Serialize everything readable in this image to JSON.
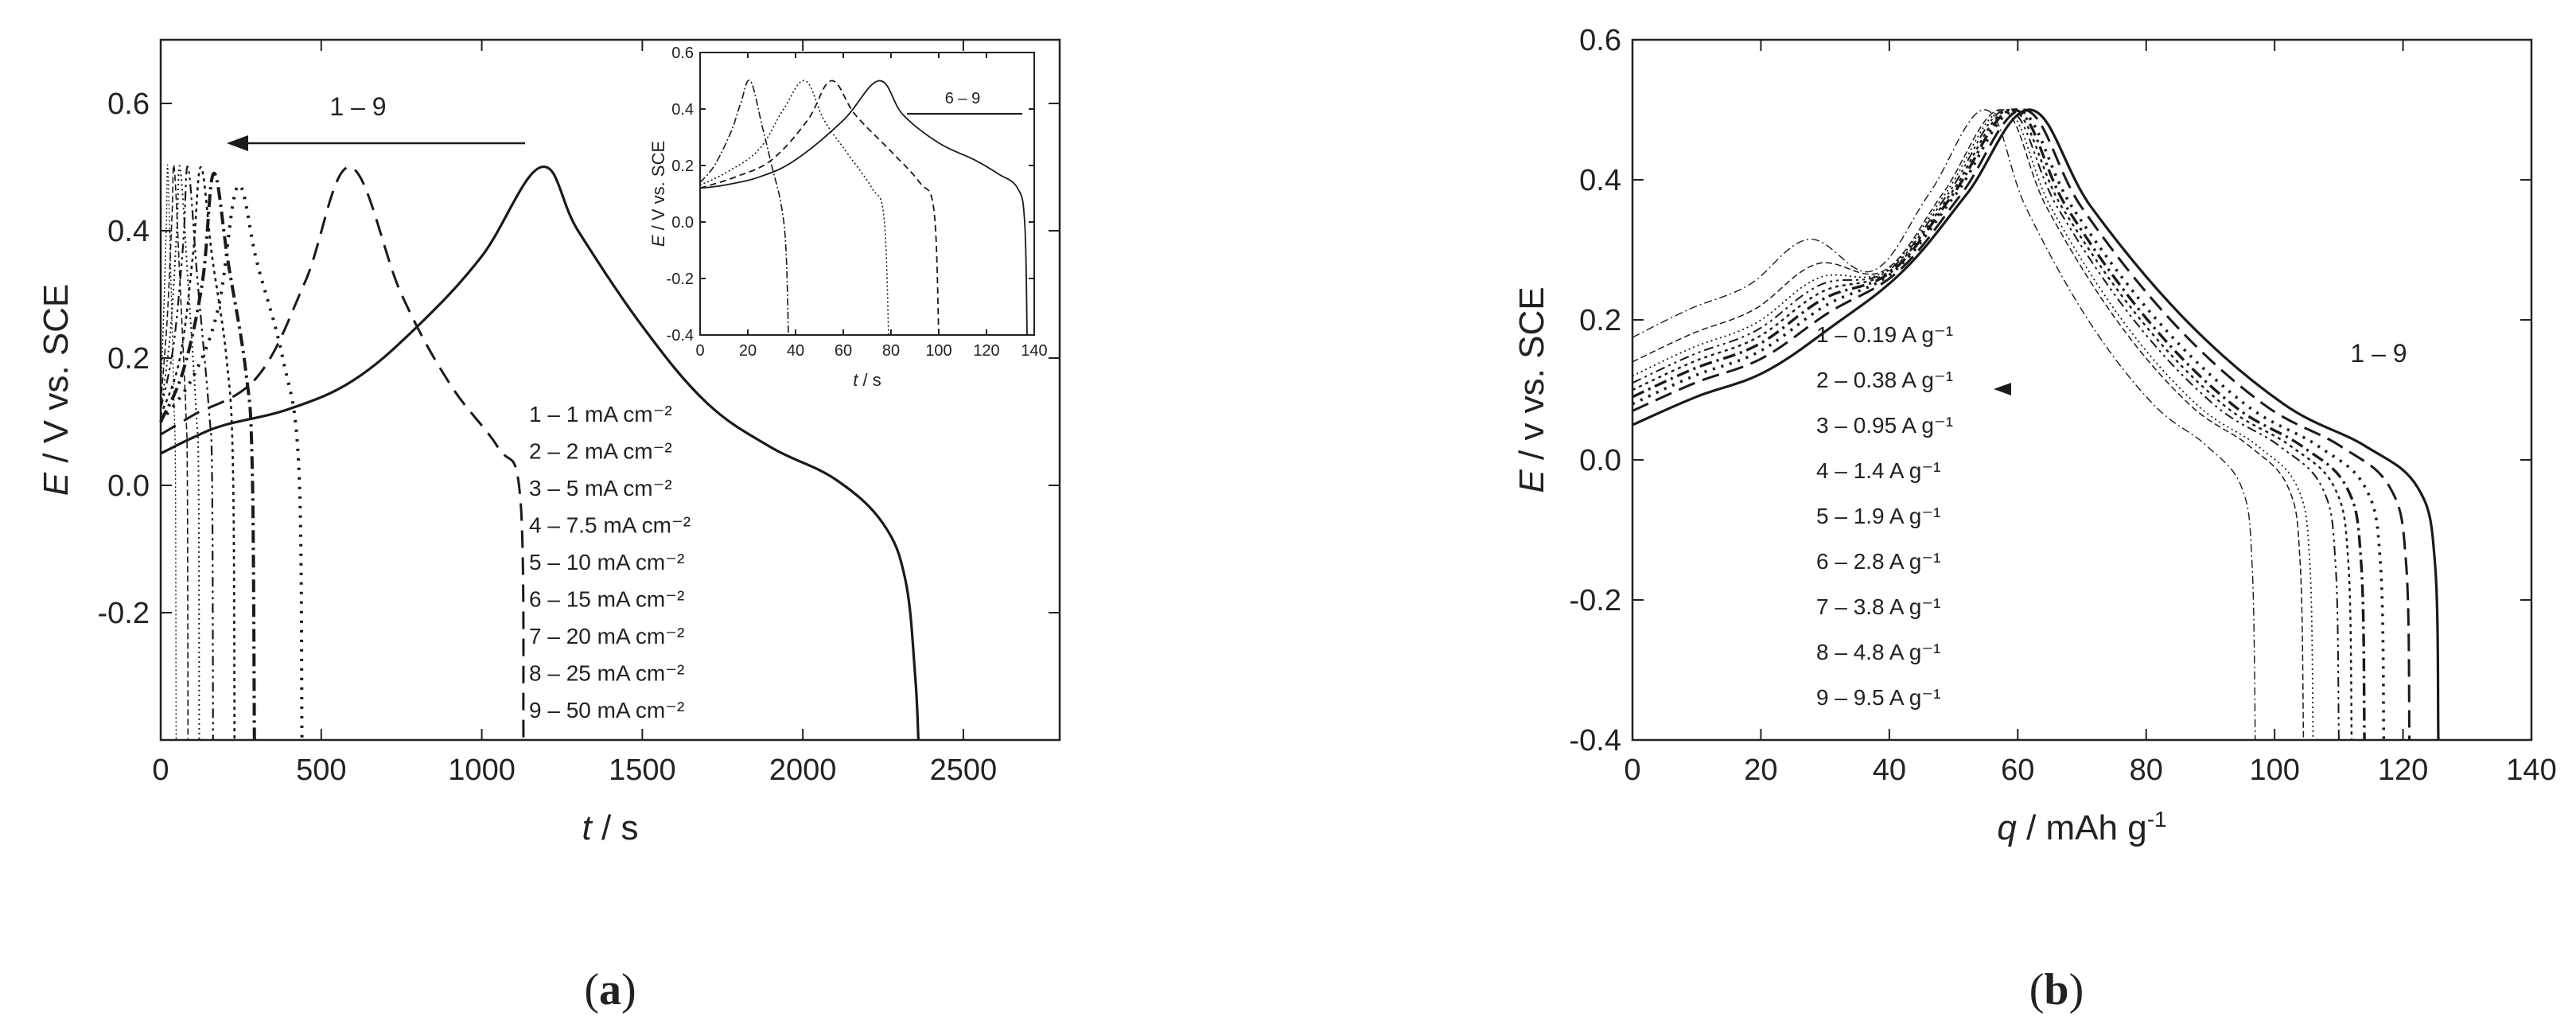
{
  "colors": {
    "ink": "#1a1a1a",
    "background": "#ffffff"
  },
  "chart_data": [
    {
      "panel": "a",
      "panel_label": "(a)",
      "panel_label_bold": "a",
      "type": "line",
      "xlabel": "t / s",
      "ylabel": "E / V vs. SCE",
      "xlabel_var": "t",
      "xlabel_unit": " / s",
      "ylabel_var": "E",
      "ylabel_unit": " / V vs. SCE",
      "xlim": [
        0,
        2800
      ],
      "ylim": [
        -0.4,
        0.7
      ],
      "xticks": [
        0,
        500,
        1000,
        1500,
        2000,
        2500
      ],
      "yticks": [
        -0.2,
        0.0,
        0.2,
        0.4,
        0.6
      ],
      "xtick_labels": [
        "0",
        "500",
        "1000",
        "1500",
        "2000",
        "2500"
      ],
      "ytick_labels": [
        "-0.2",
        "0.0",
        "0.2",
        "0.4",
        "0.6"
      ],
      "arrow_label": "1 – 9",
      "legend": [
        "1 – 1   mA cm⁻²",
        "2 – 2   mA cm⁻²",
        "3 – 5   mA cm⁻²",
        "4 – 7.5  mA cm⁻²",
        "5 – 10  mA cm⁻²",
        "6 – 15  mA cm⁻²",
        "7 – 20  mA cm⁻²",
        "8 – 25  mA cm⁻²",
        "9 – 50  mA cm⁻²"
      ],
      "series": [
        {
          "name": "1",
          "dash": "",
          "lw": 3.2,
          "points": [
            [
              0,
              0.05
            ],
            [
              100,
              0.075
            ],
            [
              200,
              0.095
            ],
            [
              400,
              0.12
            ],
            [
              600,
              0.165
            ],
            [
              800,
              0.25
            ],
            [
              1000,
              0.36
            ],
            [
              1185,
              0.5
            ],
            [
              1300,
              0.4
            ],
            [
              1500,
              0.25
            ],
            [
              1700,
              0.13
            ],
            [
              1900,
              0.06
            ],
            [
              2100,
              0.01
            ],
            [
              2250,
              -0.06
            ],
            [
              2320,
              -0.15
            ],
            [
              2350,
              -0.3
            ],
            [
              2360,
              -0.4
            ]
          ]
        },
        {
          "name": "2",
          "dash": "22 12",
          "lw": 3.0,
          "points": [
            [
              0,
              0.08
            ],
            [
              100,
              0.11
            ],
            [
              300,
              0.17
            ],
            [
              450,
              0.32
            ],
            [
              590,
              0.5
            ],
            [
              750,
              0.3
            ],
            [
              900,
              0.16
            ],
            [
              1050,
              0.06
            ],
            [
              1120,
              -0.02
            ],
            [
              1130,
              -0.4
            ]
          ]
        },
        {
          "name": "3",
          "dash": "3 9",
          "lw": 4.0,
          "points": [
            [
              0,
              0.1
            ],
            [
              100,
              0.17
            ],
            [
              180,
              0.28
            ],
            [
              240,
              0.47
            ],
            [
              300,
              0.35
            ],
            [
              380,
              0.2
            ],
            [
              430,
              0.03
            ],
            [
              440,
              -0.4
            ]
          ]
        },
        {
          "name": "4",
          "dash": "16 6 3 6",
          "lw": 4.0,
          "points": [
            [
              0,
              0.1
            ],
            [
              70,
              0.18
            ],
            [
              130,
              0.32
            ],
            [
              165,
              0.49
            ],
            [
              210,
              0.35
            ],
            [
              265,
              0.18
            ],
            [
              285,
              0.03
            ],
            [
              292,
              -0.4
            ]
          ]
        },
        {
          "name": "5",
          "dash": "4 5",
          "lw": 2.6,
          "points": [
            [
              0,
              0.11
            ],
            [
              60,
              0.2
            ],
            [
              100,
              0.36
            ],
            [
              125,
              0.5
            ],
            [
              160,
              0.36
            ],
            [
              205,
              0.2
            ],
            [
              225,
              0.03
            ],
            [
              230,
              -0.4
            ]
          ]
        },
        {
          "name": "6",
          "dash": "12 5 3 5 3 5",
          "lw": 2.2,
          "points": [
            [
              0,
              0.12
            ],
            [
              40,
              0.22
            ],
            [
              70,
              0.38
            ],
            [
              85,
              0.5
            ],
            [
              115,
              0.32
            ],
            [
              150,
              0.12
            ],
            [
              160,
              0.01
            ],
            [
              163,
              -0.4
            ]
          ]
        },
        {
          "name": "7",
          "dash": "2 4",
          "lw": 2.0,
          "points": [
            [
              0,
              0.12
            ],
            [
              30,
              0.24
            ],
            [
              50,
              0.4
            ],
            [
              60,
              0.5
            ],
            [
              85,
              0.32
            ],
            [
              110,
              0.12
            ],
            [
              118,
              0.01
            ],
            [
              120,
              -0.4
            ]
          ]
        },
        {
          "name": "8",
          "dash": "8 4",
          "lw": 1.6,
          "points": [
            [
              0,
              0.13
            ],
            [
              20,
              0.26
            ],
            [
              35,
              0.42
            ],
            [
              42,
              0.5
            ],
            [
              60,
              0.32
            ],
            [
              78,
              0.12
            ],
            [
              83,
              0.01
            ],
            [
              85,
              -0.4
            ]
          ]
        },
        {
          "name": "9",
          "dash": "2 3",
          "lw": 1.4,
          "points": [
            [
              0,
              0.14
            ],
            [
              10,
              0.28
            ],
            [
              18,
              0.42
            ],
            [
              22,
              0.5
            ],
            [
              32,
              0.32
            ],
            [
              42,
              0.12
            ],
            [
              46,
              0.01
            ],
            [
              48,
              -0.4
            ]
          ]
        }
      ],
      "inset": {
        "xlabel": "t / s",
        "ylabel": "E / V vs. SCE",
        "xlabel_var": "t",
        "xlabel_unit": " / s",
        "ylabel_var": "E",
        "ylabel_unit": " / V vs. SCE",
        "xlim": [
          0,
          140
        ],
        "ylim": [
          -0.4,
          0.6
        ],
        "xticks": [
          0,
          20,
          40,
          60,
          80,
          100,
          120,
          140
        ],
        "yticks": [
          -0.4,
          -0.2,
          0.0,
          0.2,
          0.4,
          0.6
        ],
        "xtick_labels": [
          "0",
          "20",
          "40",
          "60",
          "80",
          "100",
          "120",
          "140"
        ],
        "ytick_labels": [
          "-0.4",
          "-0.2",
          "0.0",
          "0.2",
          "0.4",
          "0.6"
        ],
        "legend_label": "6 – 9",
        "series": [
          {
            "name": "6",
            "dash": "",
            "lw": 1.8,
            "points": [
              [
                0,
                0.12
              ],
              [
                10,
                0.13
              ],
              [
                25,
                0.16
              ],
              [
                40,
                0.22
              ],
              [
                60,
                0.36
              ],
              [
                75,
                0.5
              ],
              [
                85,
                0.38
              ],
              [
                100,
                0.28
              ],
              [
                115,
                0.22
              ],
              [
                125,
                0.17
              ],
              [
                133,
                0.12
              ],
              [
                136,
                0.0
              ],
              [
                137,
                -0.4
              ]
            ]
          },
          {
            "name": "7",
            "dash": "8 5",
            "lw": 1.8,
            "points": [
              [
                0,
                0.12
              ],
              [
                15,
                0.16
              ],
              [
                30,
                0.22
              ],
              [
                45,
                0.36
              ],
              [
                55,
                0.5
              ],
              [
                65,
                0.38
              ],
              [
                80,
                0.25
              ],
              [
                92,
                0.14
              ],
              [
                98,
                0.04
              ],
              [
                100,
                -0.4
              ]
            ]
          },
          {
            "name": "8",
            "dash": "2 3",
            "lw": 1.6,
            "points": [
              [
                0,
                0.13
              ],
              [
                12,
                0.18
              ],
              [
                25,
                0.26
              ],
              [
                35,
                0.4
              ],
              [
                44,
                0.5
              ],
              [
                52,
                0.36
              ],
              [
                62,
                0.24
              ],
              [
                72,
                0.12
              ],
              [
                77,
                0.02
              ],
              [
                79,
                -0.4
              ]
            ]
          },
          {
            "name": "9",
            "dash": "9 3 2 3",
            "lw": 1.6,
            "points": [
              [
                0,
                0.14
              ],
              [
                6,
                0.2
              ],
              [
                13,
                0.32
              ],
              [
                17,
                0.42
              ],
              [
                21,
                0.5
              ],
              [
                26,
                0.34
              ],
              [
                30,
                0.2
              ],
              [
                34,
                0.06
              ],
              [
                36,
                -0.1
              ],
              [
                37,
                -0.4
              ]
            ]
          }
        ]
      }
    },
    {
      "panel": "b",
      "panel_label": "(b)",
      "panel_label_bold": "b",
      "type": "line",
      "xlabel": "q / mAh g⁻¹",
      "ylabel": "E / v vs. SCE",
      "xlabel_var": "q",
      "xlabel_unit": " / mAh g",
      "xlabel_sup": "-1",
      "ylabel_var": "E",
      "ylabel_unit": " / v vs. SCE",
      "xlim": [
        0,
        140
      ],
      "ylim": [
        -0.4,
        0.6
      ],
      "xticks": [
        0,
        20,
        40,
        60,
        80,
        100,
        120,
        140
      ],
      "yticks": [
        -0.4,
        -0.2,
        0.0,
        0.2,
        0.4,
        0.6
      ],
      "xtick_labels": [
        "0",
        "20",
        "40",
        "60",
        "80",
        "100",
        "120",
        "140"
      ],
      "ytick_labels": [
        "-0.4",
        "-0.2",
        "0.0",
        "0.2",
        "0.4",
        "0.6"
      ],
      "arrow_label": "1 – 9",
      "legend": [
        "1 – 0.19 A g⁻¹",
        "2 – 0.38 A g⁻¹",
        "3 – 0.95 A g⁻¹",
        "4 – 1.4  A g⁻¹",
        "5 – 1.9  A g⁻¹",
        "6 – 2.8  A g⁻¹",
        "7 – 3.8  A g⁻¹",
        "8 – 4.8  A g⁻¹",
        "9 – 9.5  A g⁻¹"
      ],
      "series": [
        {
          "name": "1",
          "dash": "",
          "lw": 3.2,
          "peak": [
            62,
            0.5
          ],
          "start": 0.05,
          "end": 125.5
        },
        {
          "name": "2",
          "dash": "22 10",
          "lw": 3.0,
          "peak": [
            61,
            0.5
          ],
          "start": 0.07,
          "end": 121
        },
        {
          "name": "3",
          "dash": "3 8",
          "lw": 3.6,
          "peak": [
            60,
            0.5
          ],
          "start": 0.08,
          "end": 117
        },
        {
          "name": "4",
          "dash": "16 6 3 6",
          "lw": 3.4,
          "peak": [
            59.5,
            0.5
          ],
          "start": 0.09,
          "end": 114
        },
        {
          "name": "5",
          "dash": "4 5",
          "lw": 2.4,
          "peak": [
            59,
            0.5
          ],
          "start": 0.1,
          "end": 112
        },
        {
          "name": "6",
          "dash": "12 5 3 5 3 5",
          "lw": 2.0,
          "peak": [
            58.5,
            0.5
          ],
          "start": 0.11,
          "end": 110
        },
        {
          "name": "7",
          "dash": "2 4",
          "lw": 1.8,
          "peak": [
            58,
            0.5
          ],
          "start": 0.12,
          "end": 106
        },
        {
          "name": "8",
          "dash": "8 4",
          "lw": 1.5,
          "peak": [
            57.5,
            0.5
          ],
          "start": 0.14,
          "end": 104.5
        },
        {
          "name": "9",
          "dash": "10 4 2 4",
          "lw": 1.4,
          "peak": [
            55,
            0.5
          ],
          "start": 0.175,
          "end": 97
        }
      ]
    }
  ]
}
